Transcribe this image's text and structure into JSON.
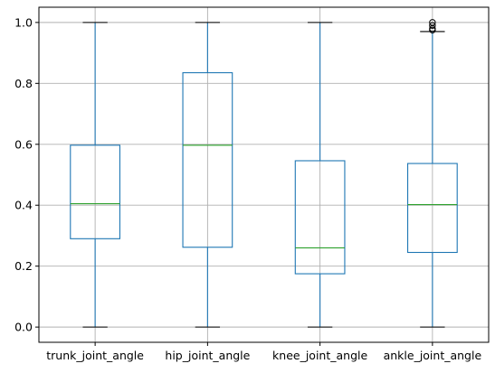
{
  "chart_data": {
    "type": "box",
    "categories": [
      "trunk_joint_angle",
      "hip_joint_angle",
      "knee_joint_angle",
      "ankle_joint_angle"
    ],
    "series": [
      {
        "category": "trunk_joint_angle",
        "whisker_low": 0.0,
        "q1": 0.29,
        "median": 0.405,
        "q3": 0.597,
        "whisker_high": 1.0,
        "fliers": []
      },
      {
        "category": "hip_joint_angle",
        "whisker_low": 0.0,
        "q1": 0.262,
        "median": 0.597,
        "q3": 0.835,
        "whisker_high": 1.0,
        "fliers": []
      },
      {
        "category": "knee_joint_angle",
        "whisker_low": 0.0,
        "q1": 0.175,
        "median": 0.26,
        "q3": 0.546,
        "whisker_high": 1.0,
        "fliers": []
      },
      {
        "category": "ankle_joint_angle",
        "whisker_low": 0.0,
        "q1": 0.245,
        "median": 0.402,
        "q3": 0.537,
        "whisker_high": 0.97,
        "fliers": [
          0.975,
          0.98,
          0.99,
          1.0
        ]
      }
    ],
    "yticks": [
      "0.0",
      "0.2",
      "0.4",
      "0.6",
      "0.8",
      "1.0"
    ],
    "ytick_values": [
      0.0,
      0.2,
      0.4,
      0.6,
      0.8,
      1.0
    ],
    "ylim": [
      -0.05,
      1.05
    ],
    "grid": true,
    "title": "",
    "xlabel": "",
    "ylabel": "",
    "colors": {
      "box": "#1f77b4",
      "median": "#2ca02c",
      "cap": "#000000",
      "grid": "#b0b0b0"
    }
  }
}
